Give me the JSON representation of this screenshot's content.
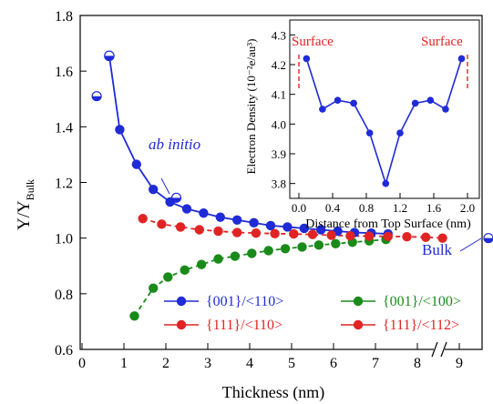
{
  "chart_data": [
    {
      "id": "main",
      "type": "line",
      "title": "",
      "xlabel": "Thickness (nm)",
      "ylabel": "Y/Y",
      "ylabel_sub": "Bulk",
      "xlim": [
        0,
        10
      ],
      "ylim": [
        0.6,
        1.8
      ],
      "x_break": true,
      "xticks": [
        0,
        1,
        2,
        3,
        4,
        5,
        6,
        7,
        8,
        9
      ],
      "yticks": [
        0.6,
        0.8,
        1.0,
        1.2,
        1.4,
        1.6,
        1.8
      ],
      "grid": false,
      "legend_position": "bottom-right",
      "series": [
        {
          "name": "{001}/<110>",
          "color": "#1f2bd6",
          "x": [
            0.9,
            1.3,
            1.7,
            2.1,
            2.5,
            2.9,
            3.3,
            3.7,
            4.1,
            4.5,
            4.9,
            5.3,
            5.7,
            6.1,
            6.5,
            6.9,
            7.3
          ],
          "y": [
            1.39,
            1.265,
            1.175,
            1.13,
            1.105,
            1.09,
            1.075,
            1.065,
            1.055,
            1.045,
            1.04,
            1.035,
            1.03,
            1.025,
            1.02,
            1.018,
            1.015
          ]
        },
        {
          "name": "{001}/<100>",
          "color": "#1a8a1a",
          "x": [
            1.25,
            1.7,
            2.05,
            2.45,
            2.85,
            3.25,
            3.65,
            4.05,
            4.45,
            4.85,
            5.25,
            5.65,
            6.05,
            6.45,
            6.85,
            7.25
          ],
          "y": [
            0.72,
            0.82,
            0.86,
            0.885,
            0.905,
            0.925,
            0.935,
            0.945,
            0.955,
            0.962,
            0.968,
            0.975,
            0.98,
            0.985,
            0.99,
            0.995
          ]
        },
        {
          "name": "{111}/<110>",
          "color": "#e02424",
          "x": [
            1.45,
            1.9,
            2.35,
            2.8,
            3.25,
            3.7,
            4.15,
            4.6,
            5.05,
            5.5,
            5.95,
            6.4,
            6.85,
            7.3,
            7.75,
            8.2,
            8.6
          ],
          "y": [
            1.07,
            1.05,
            1.04,
            1.03,
            1.025,
            1.02,
            1.018,
            1.016,
            1.015,
            1.013,
            1.01,
            1.008,
            1.007,
            1.006,
            1.005,
            1.003,
            1.0
          ]
        }
      ],
      "extra_legend": [
        {
          "name": "{111}/<112>",
          "color": "#e02424"
        }
      ],
      "lead_point": {
        "x": 0.65,
        "y": 1.655,
        "color": "#1f2bd6"
      },
      "ab_initio_points": [
        {
          "x": 0.35,
          "y": 1.51
        },
        {
          "x": 2.25,
          "y": 1.145
        }
      ],
      "bulk_point": {
        "y": 1.0
      },
      "annotations": {
        "ab_initio": "ab initio",
        "bulk": "Bulk"
      }
    },
    {
      "id": "inset",
      "type": "line",
      "xlabel": "Distance from Top Surface (nm)",
      "ylabel": "Electron Density (10⁻²e/au³)",
      "xlim": [
        -0.1,
        2.1
      ],
      "ylim": [
        3.75,
        4.35
      ],
      "xticks": [
        0.0,
        0.4,
        0.8,
        1.2,
        1.6,
        2.0
      ],
      "yticks": [
        3.8,
        3.9,
        4.0,
        4.1,
        4.2,
        4.3
      ],
      "series": [
        {
          "name": "",
          "color": "#1f2bd6",
          "x": [
            0.09,
            0.28,
            0.46,
            0.65,
            0.84,
            1.03,
            1.2,
            1.38,
            1.56,
            1.74,
            1.93
          ],
          "y": [
            4.22,
            4.05,
            4.08,
            4.07,
            3.97,
            3.8,
            3.97,
            4.07,
            4.08,
            4.05,
            4.22
          ]
        }
      ],
      "surface_label": "Surface",
      "surface_color": "#e02424",
      "surface_x": [
        0.0,
        2.0
      ]
    }
  ]
}
